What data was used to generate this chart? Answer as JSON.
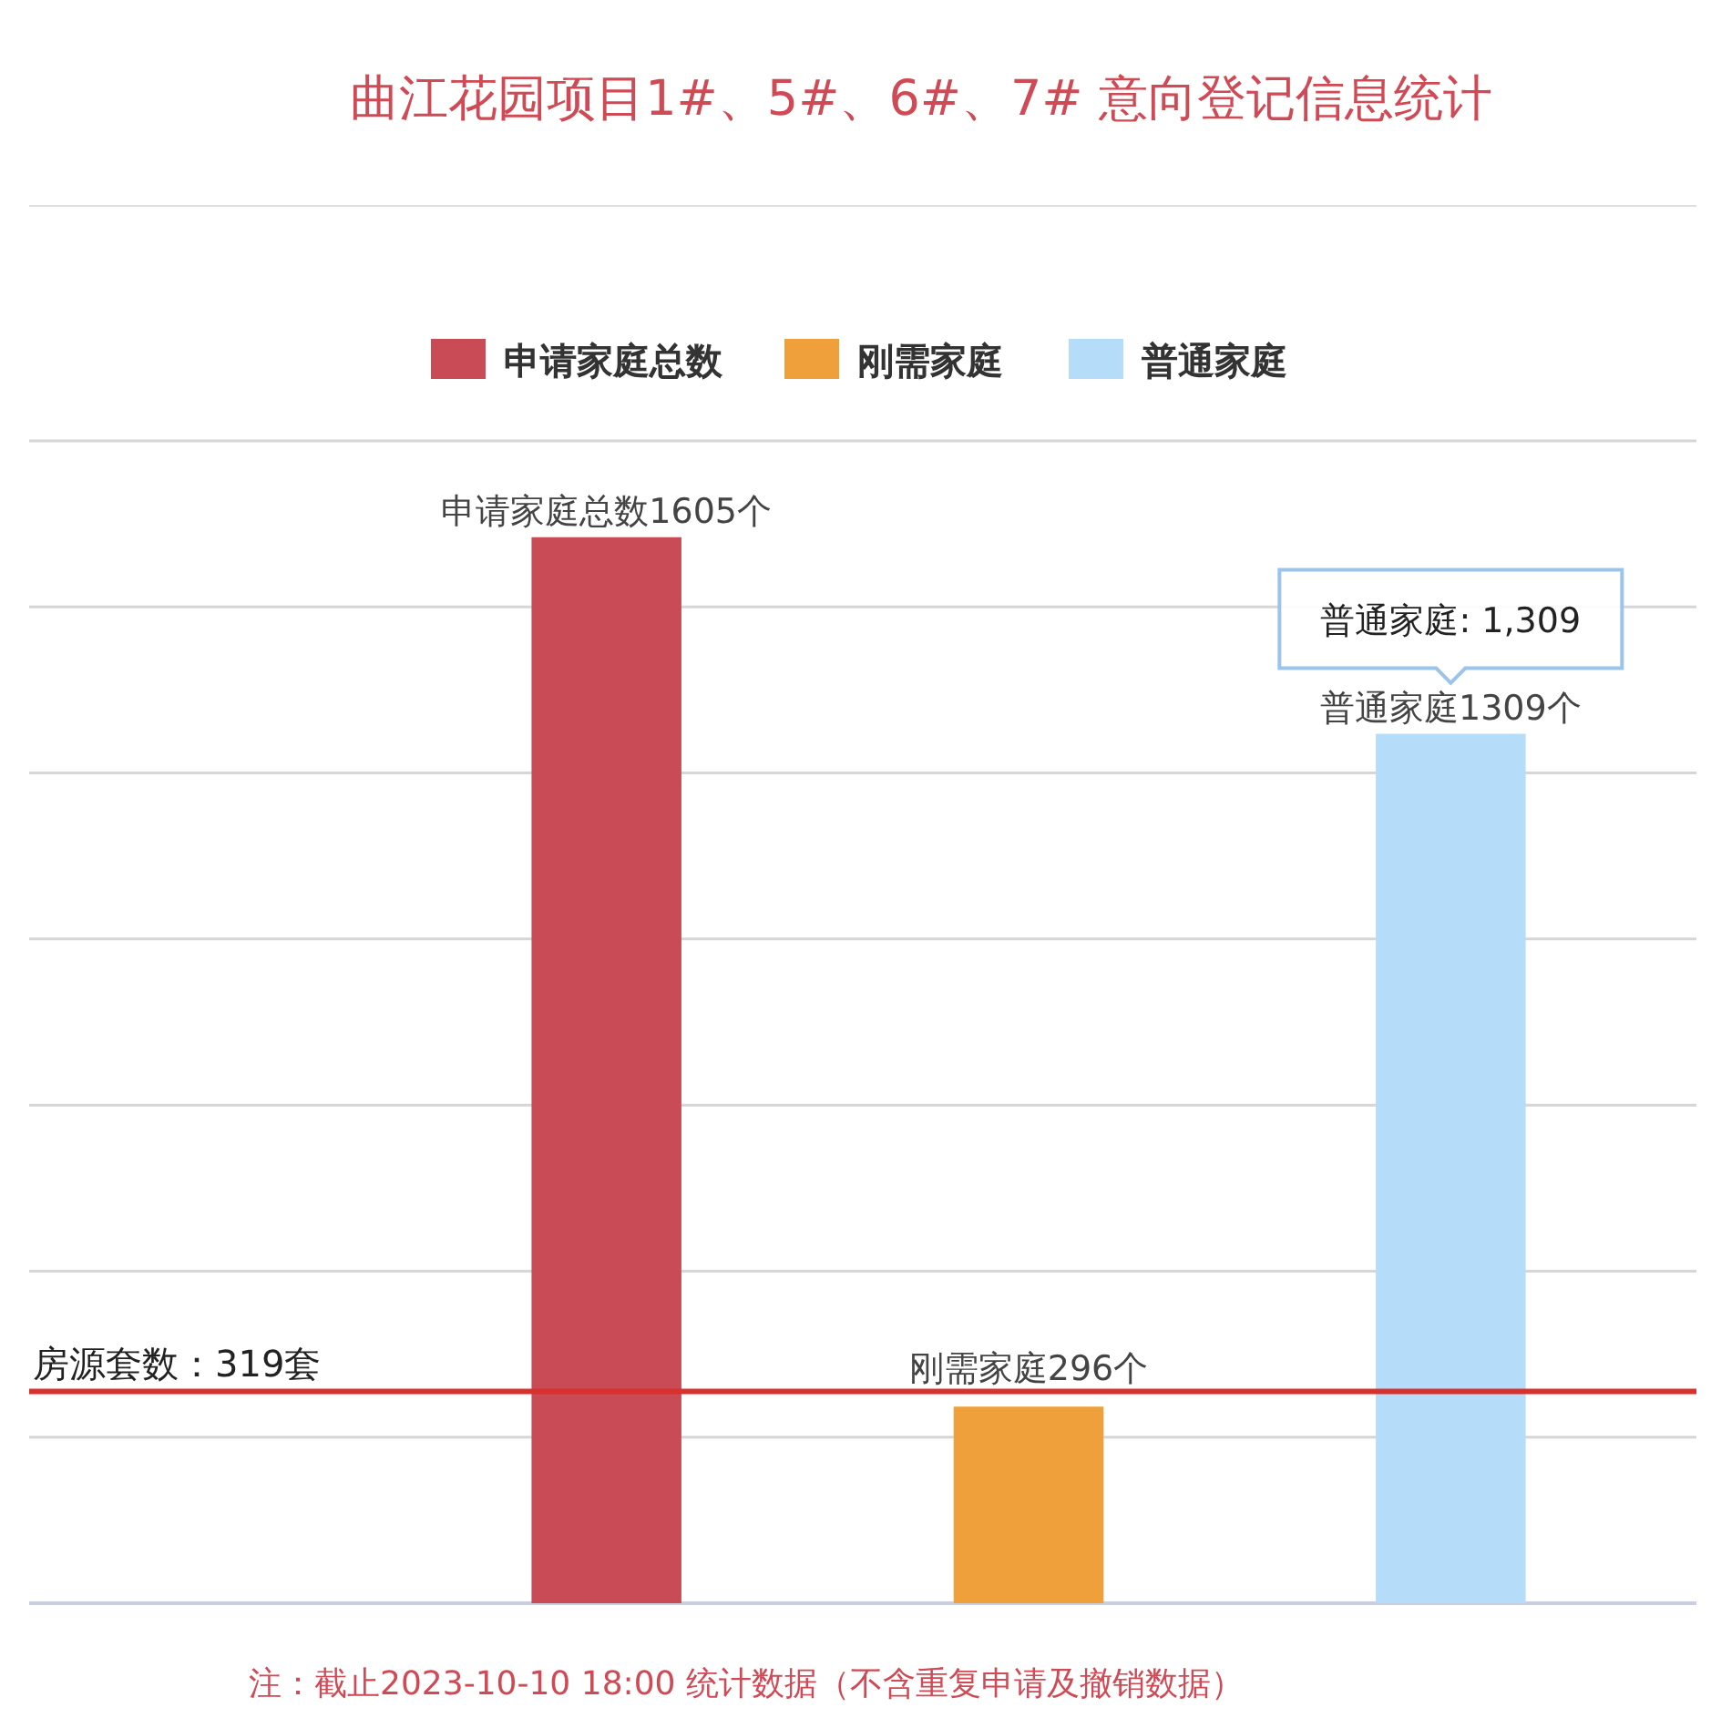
{
  "chart_data": {
    "type": "bar",
    "title": "曲江花园项目1#、5#、6#、7# 意向登记信息统计",
    "categories": [
      null,
      null,
      null
    ],
    "series": [
      {
        "name": "申请家庭总数",
        "color": "#c84b55",
        "values": [
          1605,
          null,
          null
        ],
        "value_labels": [
          "申请家庭总数1605个",
          null,
          null
        ]
      },
      {
        "name": "刚需家庭",
        "color": "#f0a03a",
        "values": [
          null,
          296,
          null
        ],
        "value_labels": [
          null,
          "刚需家庭296个",
          null
        ]
      },
      {
        "name": "普通家庭",
        "color": "#b5dcf9",
        "values": [
          null,
          null,
          1309
        ],
        "value_labels": [
          null,
          null,
          "普通家庭1309个"
        ]
      }
    ],
    "ylim": [
      0,
      1750
    ],
    "yticks": [
      {
        "value": 0,
        "label": null
      },
      {
        "value": 250,
        "label": null
      },
      {
        "value": 500,
        "label": null
      },
      {
        "value": 750,
        "label": null
      },
      {
        "value": 1000,
        "label": null
      },
      {
        "value": 1250,
        "label": null
      },
      {
        "value": 1500,
        "label": null
      },
      {
        "value": 1750,
        "label": null
      }
    ],
    "grid": "y",
    "legend": "top",
    "stacked": true,
    "ref_lines": [
      {
        "axis": "y",
        "value": 319,
        "label": "房源套数：319套",
        "color": "#d8312e"
      }
    ],
    "annotations": [
      {
        "text": "普通家庭: 1,309",
        "y": 1309
      },
      "注：截止2023-10-10 18:00 统计数据（不含重复申请及撤销数据）"
    ]
  }
}
